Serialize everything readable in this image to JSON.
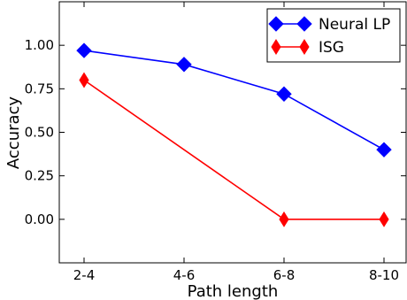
{
  "chart_data": {
    "type": "line",
    "xlabel": "Path length",
    "ylabel": "Accuracy",
    "categories": [
      "2-4",
      "4-6",
      "6-8",
      "8-10"
    ],
    "yticks": [
      "0.00",
      "0.25",
      "0.50",
      "0.75",
      "1.00"
    ],
    "ylim": [
      -0.25,
      1.25
    ],
    "grid": false,
    "legend_position": "top-right",
    "series": [
      {
        "name": "Neural LP",
        "values": [
          0.97,
          0.89,
          0.72,
          0.4
        ],
        "color": "#0000ff",
        "marker": "diamond"
      },
      {
        "name": "ISG",
        "values": [
          0.8,
          null,
          0.0,
          0.0
        ],
        "color": "#ff0000",
        "marker": "thin-diamond"
      }
    ]
  }
}
